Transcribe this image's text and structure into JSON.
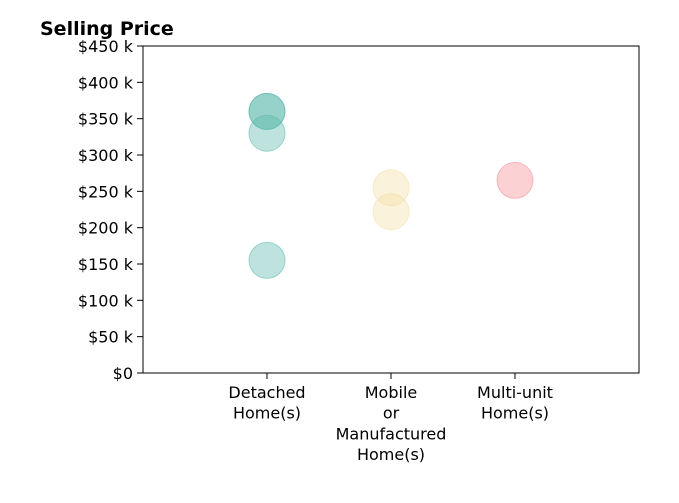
{
  "chart_data": {
    "type": "scatter",
    "title": "Selling Price",
    "xlabel": "",
    "ylabel": "",
    "categories": [
      [
        "Detached",
        "Home(s)"
      ],
      [
        "Mobile",
        "or",
        "Manufactured",
        "Home(s)"
      ],
      [
        "Multi-unit",
        "Home(s)"
      ]
    ],
    "ylim": [
      0,
      450000
    ],
    "y_ticks": [
      0,
      50000,
      100000,
      150000,
      200000,
      250000,
      300000,
      350000,
      400000,
      450000
    ],
    "y_tick_labels": [
      "$0",
      "$50 k",
      "$100 k",
      "$150 k",
      "$200 k",
      "$250 k",
      "$300 k",
      "$350 k",
      "$400 k",
      "$450 k"
    ],
    "grid": false,
    "legend": "none",
    "points": [
      {
        "category": 0,
        "y": 360000,
        "color": "#5cb8ad"
      },
      {
        "category": 0,
        "y": 360000,
        "color": "#5cb8ad"
      },
      {
        "category": 0,
        "y": 330000,
        "color": "#5cb8ad"
      },
      {
        "category": 0,
        "y": 155000,
        "color": "#5cb8ad"
      },
      {
        "category": 1,
        "y": 255000,
        "color": "#f3dea4"
      },
      {
        "category": 1,
        "y": 222000,
        "color": "#f3dea4"
      },
      {
        "category": 2,
        "y": 265000,
        "color": "#f48c94"
      }
    ],
    "colors": {
      "detached": "#5cb8ad",
      "mobile": "#f3dea4",
      "multi_unit": "#f48c94"
    }
  }
}
